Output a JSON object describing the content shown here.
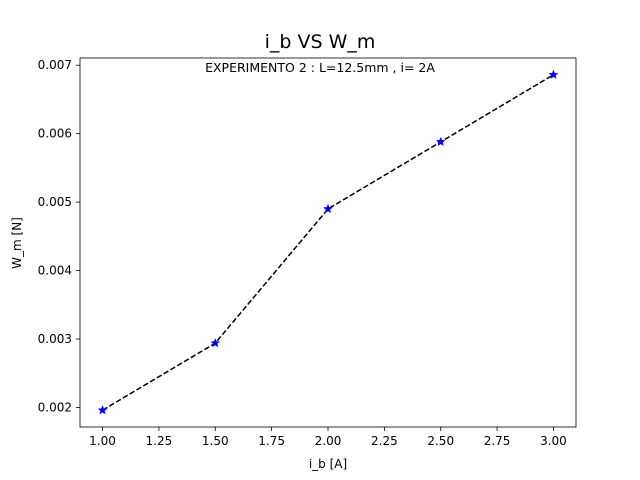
{
  "chart_data": {
    "type": "line",
    "title": "i_b VS W_m",
    "annotation": "EXPERIMENTO 2 : L=12.5mm , i= 2A",
    "xlabel": "i_b [A]",
    "ylabel": "W_m [N]",
    "x": [
      1.0,
      1.5,
      2.0,
      2.5,
      3.0
    ],
    "series": [
      {
        "values": [
          0.00196,
          0.00294,
          0.0049,
          0.00588,
          0.00686
        ],
        "line_color": "#000000",
        "marker_color": "#0000ff",
        "line_style": "dashed",
        "marker": "star"
      }
    ],
    "xlim": [
      0.9,
      3.1
    ],
    "ylim": [
      0.001715,
      0.007105
    ],
    "x_ticks": [
      1.0,
      1.25,
      1.5,
      1.75,
      2.0,
      2.25,
      2.5,
      2.75,
      3.0
    ],
    "x_tick_labels": [
      "1.00",
      "1.25",
      "1.50",
      "1.75",
      "2.00",
      "2.25",
      "2.50",
      "2.75",
      "3.00"
    ],
    "y_ticks": [
      0.002,
      0.003,
      0.004,
      0.005,
      0.006,
      0.007
    ],
    "y_tick_labels": [
      "0.002",
      "0.003",
      "0.004",
      "0.005",
      "0.006",
      "0.007"
    ],
    "grid": false
  }
}
